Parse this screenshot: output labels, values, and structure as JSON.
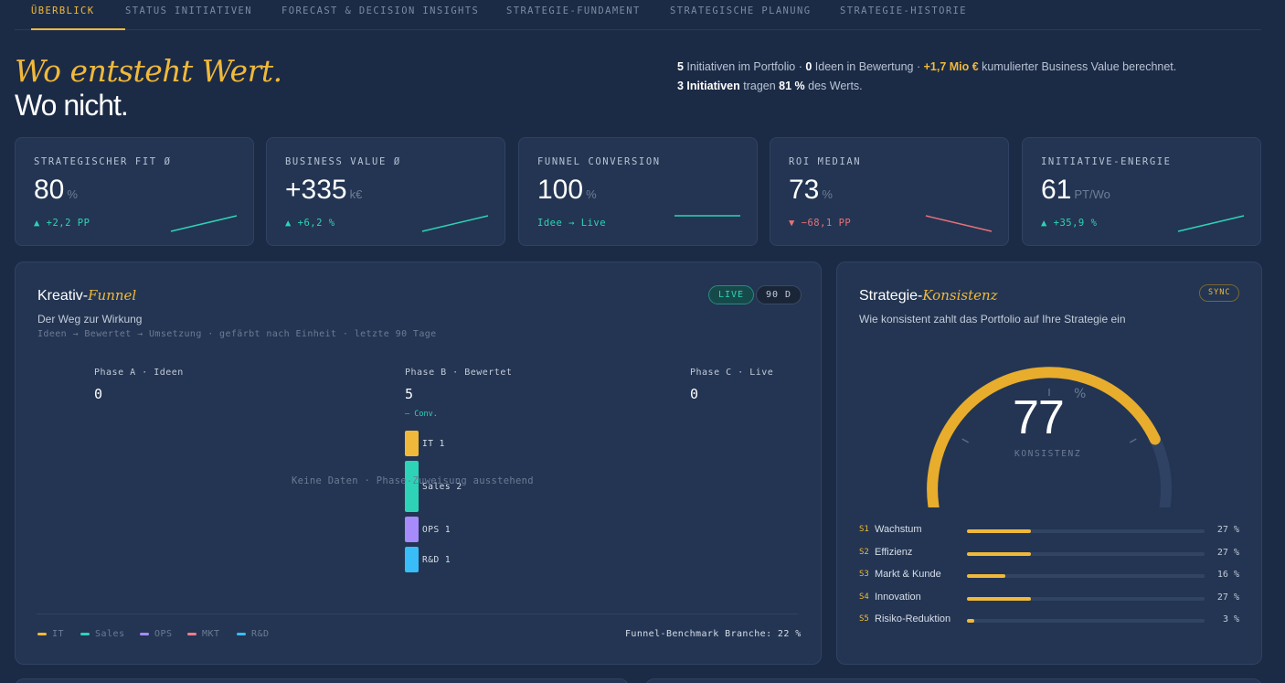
{
  "tabs": [
    "Überblick",
    "Status Initiativen",
    "Forecast & Decision Insights",
    "Strategie-Fundament",
    "Strategische Planung",
    "Strategie-Historie"
  ],
  "hero": {
    "line1": "Wo entsteht Wert.",
    "line2": "Wo nicht."
  },
  "summary": {
    "initiatives_count": "5",
    "t1": " Initiativen im Portfolio · ",
    "ideas_count": "0",
    "t2": " Ideen in Bewertung · ",
    "value": "+1,7 Mio €",
    "t3": " kumulierter Business Value berechnet.",
    "top_initiatives": "3 Initiativen",
    "t4": " tragen ",
    "share": "81 %",
    "t5": " des Werts."
  },
  "kpis": [
    {
      "label": "STRATEGISCHER FIT Ø",
      "value": "80",
      "unit": "%",
      "delta": "▲ +2,2 PP",
      "trend": "up"
    },
    {
      "label": "BUSINESS VALUE Ø",
      "value": "+335",
      "unit": "k€",
      "delta": "▲ +6,2 %",
      "trend": "up"
    },
    {
      "label": "FUNNEL CONVERSION",
      "value": "100",
      "unit": "%",
      "delta": "Idee → Live",
      "trend": "flat"
    },
    {
      "label": "ROI MEDIAN",
      "value": "73",
      "unit": "%",
      "delta": "▼ −68,1 PP",
      "trend": "down"
    },
    {
      "label": "INITIATIVE-ENERGIE",
      "value": "61",
      "unit": "PT/Wo",
      "delta": "▲ +35,9 %",
      "trend": "up"
    }
  ],
  "funnel": {
    "title_plain": "Kreativ-",
    "title_accent": "Funnel",
    "subtitle": "Der Weg zur Wirkung",
    "caption": "Ideen → Bewertet → Umsetzung · gefärbt nach Einheit · letzte 90 Tage",
    "badge_live": "LIVE",
    "badge_range": "90 D",
    "phases": [
      {
        "label": "Phase A · Ideen",
        "count": "0"
      },
      {
        "label": "Phase B · Bewertet",
        "count": "5"
      },
      {
        "label": "Phase C · Live",
        "count": "0"
      }
    ],
    "conv_label": "— Conv.",
    "empty_message": "Keine Daten · Phase-Zuweisung ausstehend",
    "segments": [
      {
        "label": "IT 1",
        "unit": "IT",
        "count": 1,
        "color": "#f0b93a"
      },
      {
        "label": "Sales 2",
        "unit": "Sales",
        "count": 2,
        "color": "#2ed3b7"
      },
      {
        "label": "OPS 1",
        "unit": "OPS",
        "count": 1,
        "color": "#a78bfa"
      },
      {
        "label": "R&D 1",
        "unit": "R&D",
        "count": 1,
        "color": "#38bdf8"
      }
    ],
    "legend": [
      {
        "label": "IT",
        "color": "#f0b93a"
      },
      {
        "label": "Sales",
        "color": "#2ed3b7"
      },
      {
        "label": "OPS",
        "color": "#a78bfa"
      },
      {
        "label": "MKT",
        "color": "#f07c8a"
      },
      {
        "label": "R&D",
        "color": "#38bdf8"
      }
    ],
    "benchmark": "Funnel-Benchmark Branche: 22 %"
  },
  "consistency": {
    "title_plain": "Strategie-",
    "title_accent": "Konsistenz",
    "subtitle": "Wie konsistent zahlt das Portfolio auf Ihre Strategie ein",
    "badge": "SYNC",
    "gauge_value": 77,
    "gauge_display": "77",
    "gauge_unit": "%",
    "gauge_label": "KONSISTENZ",
    "items": [
      {
        "code": "S1",
        "name": "Wachstum",
        "pct": "27 %",
        "value": 27
      },
      {
        "code": "S2",
        "name": "Effizienz",
        "pct": "27 %",
        "value": 27
      },
      {
        "code": "S3",
        "name": "Markt & Kunde",
        "pct": "16 %",
        "value": 16
      },
      {
        "code": "S4",
        "name": "Innovation",
        "pct": "27 %",
        "value": 27
      },
      {
        "code": "S5",
        "name": "Risiko-Reduktion",
        "pct": "3 %",
        "value": 3
      }
    ]
  },
  "colors": {
    "accent": "#f0b93a",
    "positive": "#2ed3b7",
    "negative": "#e8717a",
    "background": "#1c2b45"
  }
}
